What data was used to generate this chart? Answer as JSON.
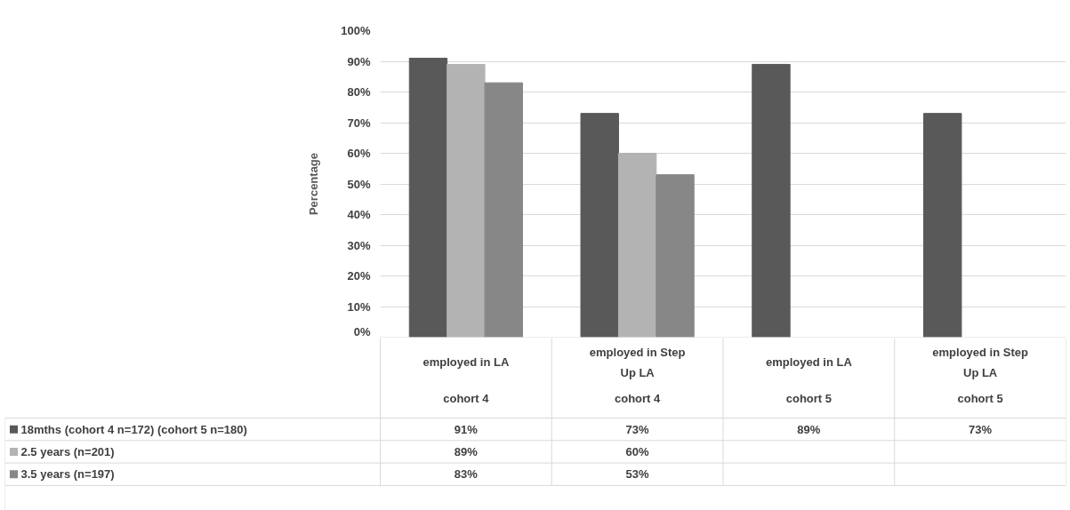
{
  "chart_data": {
    "type": "bar",
    "ylabel": "Percentage",
    "categories": [
      "employed in LA\ncohort 4",
      "employed in Step Up LA\ncohort 4",
      "employed in LA\ncohort 5",
      "employed in Step Up LA\ncohort 5"
    ],
    "series": [
      {
        "name": "18mths (cohort 4 n=172) (cohort 5 n=180)",
        "color": "#595959",
        "values": [
          91,
          73,
          89,
          73
        ],
        "value_labels": [
          "91%",
          "73%",
          "89%",
          "73%"
        ]
      },
      {
        "name": "2.5 years (n=201)",
        "color": "#b3b3b3",
        "values": [
          89,
          60,
          null,
          null
        ],
        "value_labels": [
          "89%",
          "60%",
          null,
          null
        ]
      },
      {
        "name": "3.5 years (n=197)",
        "color": "#878787",
        "values": [
          83,
          53,
          null,
          null
        ],
        "value_labels": [
          "83%",
          "53%",
          null,
          null
        ]
      }
    ],
    "ylim": [
      0,
      100
    ],
    "yticks": [
      {
        "value": 0,
        "label": "0%"
      },
      {
        "value": 10,
        "label": "10%"
      },
      {
        "value": 20,
        "label": "20%"
      },
      {
        "value": 30,
        "label": "30%"
      },
      {
        "value": 40,
        "label": "40%"
      },
      {
        "value": 50,
        "label": "50%"
      },
      {
        "value": 60,
        "label": "60%"
      },
      {
        "value": 70,
        "label": "70%"
      },
      {
        "value": 80,
        "label": "80%"
      },
      {
        "value": 90,
        "label": "90%"
      },
      {
        "value": 100,
        "label": "100%"
      }
    ],
    "grid": "y",
    "legend": "bottom"
  }
}
